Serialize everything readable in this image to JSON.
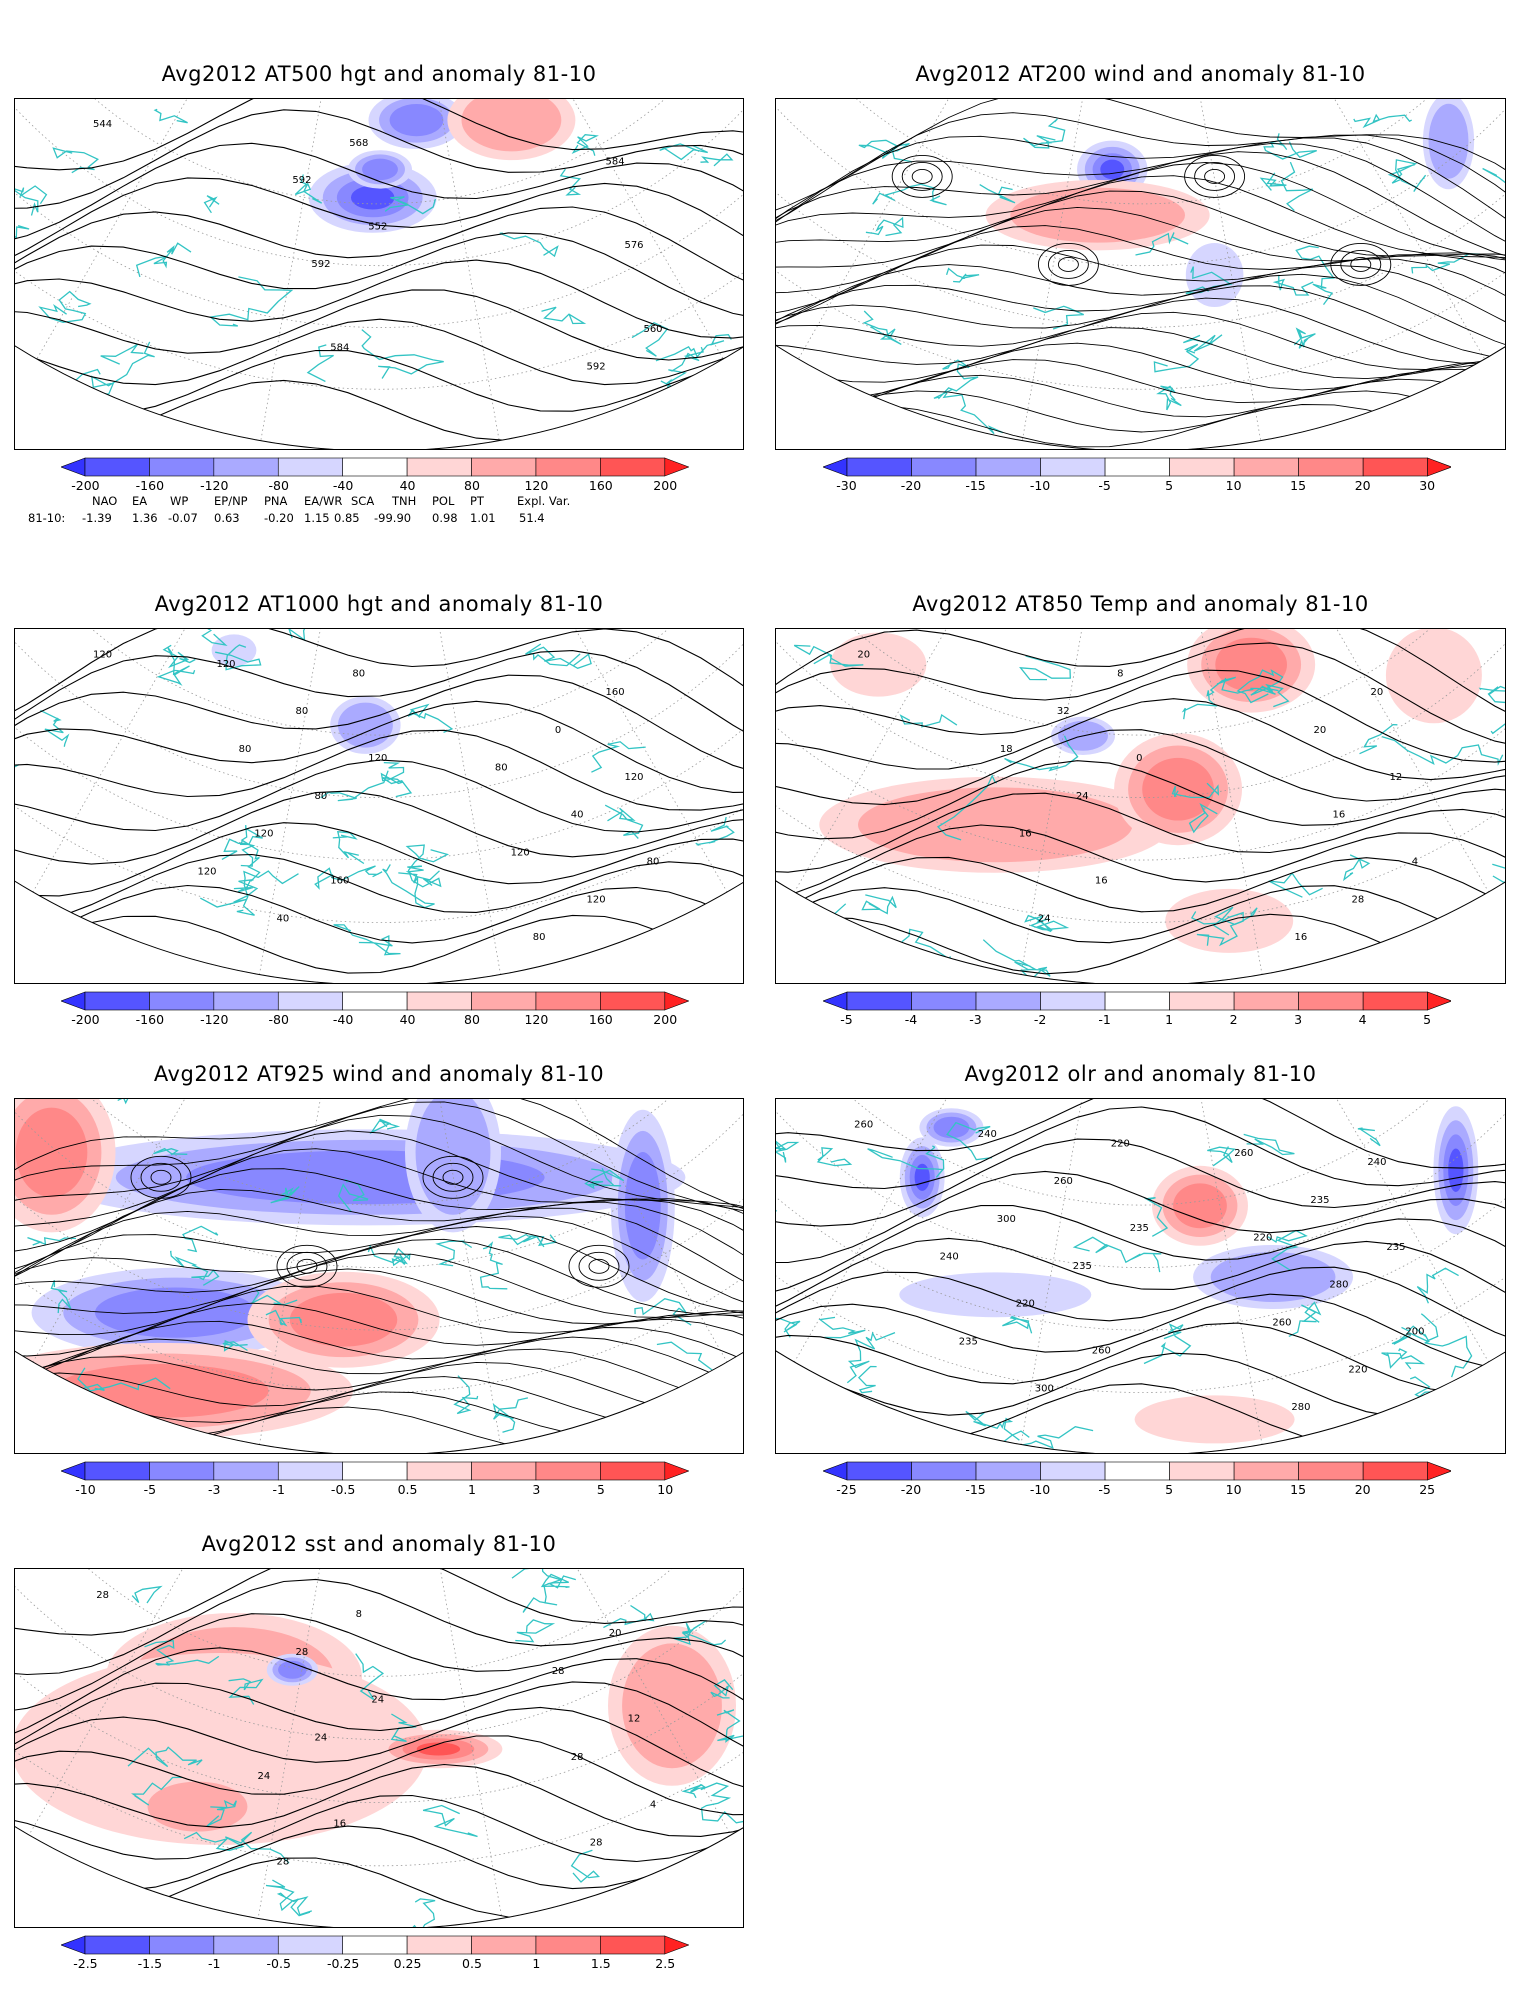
{
  "panels": [
    {
      "id": "p1",
      "title": "Avg2012 AT500 hgt and anomaly 81-10",
      "contour_labels": [
        "544",
        "552",
        "560",
        "568",
        "576",
        "584",
        "584",
        "592",
        "592",
        "592"
      ],
      "colorbar": {
        "labels": [
          "-200",
          "-160",
          "-120",
          "-80",
          "-40",
          "40",
          "80",
          "120",
          "160",
          "200"
        ],
        "colors": [
          "#3333ff",
          "#5555ff",
          "#8888ff",
          "#aaaaff",
          "#d6d6ff",
          "#ffffff",
          "#ffd6d6",
          "#ffaaaa",
          "#ff8888",
          "#ff5555",
          "#ff2222"
        ]
      },
      "teleconnections": {
        "row_label": "81-10:",
        "headers": [
          "NAO",
          "EA",
          "WP",
          "EP/NP",
          "PNA",
          "EA/WR",
          "SCA",
          "TNH",
          "POL",
          "PT",
          "Expl. Var."
        ],
        "values": [
          "-1.39",
          "1.36",
          "-0.07",
          "0.63",
          "-0.20",
          "1.15",
          "0.85",
          "-99.90",
          "0.98",
          "1.01",
          "51.4"
        ]
      }
    },
    {
      "id": "p2",
      "title": "Avg2012 AT200 wind and anomaly 81-10",
      "colorbar": {
        "labels": [
          "-30",
          "-20",
          "-15",
          "-10",
          "-5",
          "5",
          "10",
          "15",
          "20",
          "30"
        ],
        "colors": [
          "#3333ff",
          "#5555ff",
          "#8888ff",
          "#aaaaff",
          "#d6d6ff",
          "#ffffff",
          "#ffd6d6",
          "#ffaaaa",
          "#ff8888",
          "#ff5555",
          "#ff2222"
        ]
      }
    },
    {
      "id": "p3",
      "title": "Avg2012 AT1000 hgt and anomaly 81-10",
      "contour_labels": [
        "120",
        "120",
        "80",
        "80",
        "120",
        "160",
        "160",
        "80",
        "120",
        "80",
        "40",
        "40",
        "0",
        "120",
        "80",
        "80",
        "120",
        "120",
        "80",
        "120"
      ],
      "colorbar": {
        "labels": [
          "-200",
          "-160",
          "-120",
          "-80",
          "-40",
          "40",
          "80",
          "120",
          "160",
          "200"
        ],
        "colors": [
          "#3333ff",
          "#5555ff",
          "#8888ff",
          "#aaaaff",
          "#d6d6ff",
          "#ffffff",
          "#ffd6d6",
          "#ffaaaa",
          "#ff8888",
          "#ff5555",
          "#ff2222"
        ]
      }
    },
    {
      "id": "p4",
      "title": "Avg2012 AT850 Temp and anomaly 81-10",
      "contour_labels": [
        "20",
        "0",
        "4",
        "8",
        "12",
        "16",
        "20",
        "24",
        "28",
        "32",
        "16",
        "24",
        "20",
        "16",
        "16",
        "18"
      ],
      "colorbar": {
        "labels": [
          "-5",
          "-4",
          "-3",
          "-2",
          "-1",
          "1",
          "2",
          "3",
          "4",
          "5"
        ],
        "colors": [
          "#3333ff",
          "#5555ff",
          "#8888ff",
          "#aaaaff",
          "#d6d6ff",
          "#ffffff",
          "#ffd6d6",
          "#ffaaaa",
          "#ff8888",
          "#ff5555",
          "#ff2222"
        ]
      }
    },
    {
      "id": "p5",
      "title": "Avg2012 AT925 wind and anomaly 81-10",
      "colorbar": {
        "labels": [
          "-10",
          "-5",
          "-3",
          "-1",
          "-0.5",
          "0.5",
          "1",
          "3",
          "5",
          "10"
        ],
        "colors": [
          "#3333ff",
          "#5555ff",
          "#8888ff",
          "#aaaaff",
          "#d6d6ff",
          "#ffffff",
          "#ffd6d6",
          "#ffaaaa",
          "#ff8888",
          "#ff5555",
          "#ff2222"
        ]
      }
    },
    {
      "id": "p6",
      "title": "Avg2012 olr and anomaly 81-10",
      "contour_labels": [
        "260",
        "235",
        "200",
        "220",
        "235",
        "260",
        "240",
        "235",
        "220",
        "260",
        "280",
        "300",
        "235",
        "220",
        "280",
        "300",
        "260",
        "240",
        "220",
        "235",
        "260",
        "240"
      ],
      "colorbar": {
        "labels": [
          "-25",
          "-20",
          "-15",
          "-10",
          "-5",
          "5",
          "10",
          "15",
          "20",
          "25"
        ],
        "colors": [
          "#3333ff",
          "#5555ff",
          "#8888ff",
          "#aaaaff",
          "#d6d6ff",
          "#ffffff",
          "#ffd6d6",
          "#ffaaaa",
          "#ff8888",
          "#ff5555",
          "#ff2222"
        ]
      }
    },
    {
      "id": "p7",
      "title": "Avg2012 sst and anomaly 81-10",
      "contour_labels": [
        "28",
        "24",
        "4",
        "8",
        "12",
        "16",
        "20",
        "24",
        "28",
        "28",
        "28",
        "28",
        "28",
        "24"
      ],
      "colorbar": {
        "labels": [
          "-2.5",
          "-1.5",
          "-1",
          "-0.5",
          "-0.25",
          "0.25",
          "0.5",
          "1",
          "1.5",
          "2.5"
        ],
        "colors": [
          "#3333ff",
          "#5555ff",
          "#8888ff",
          "#aaaaff",
          "#d6d6ff",
          "#ffffff",
          "#ffd6d6",
          "#ffaaaa",
          "#ff8888",
          "#ff5555",
          "#ff2222"
        ]
      }
    }
  ],
  "colors": {
    "coast": "#33c4c4",
    "contour": "#000000",
    "grid": "#9a9a9a"
  }
}
